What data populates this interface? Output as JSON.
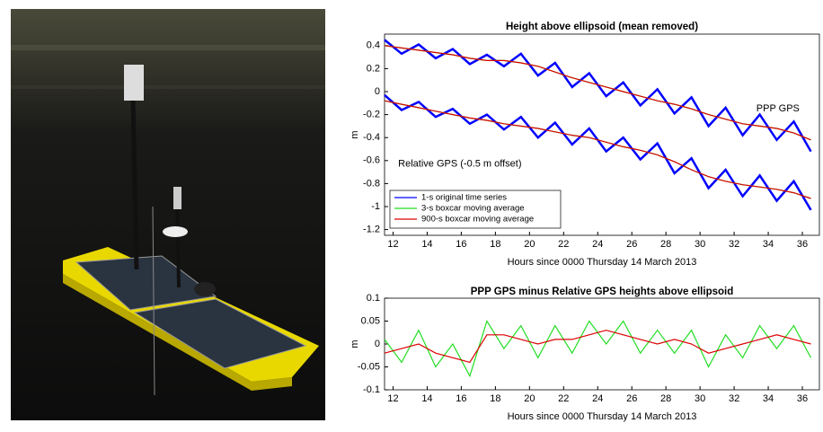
{
  "chart_data": [
    {
      "type": "line",
      "title": "Height above ellipsoid (mean removed)",
      "xlabel": "Hours since 0000 Thursday 14 March 2013",
      "ylabel": "m",
      "annotations": [
        "PPP GPS",
        "Relative GPS (-0.5 m offset)"
      ],
      "x": [
        11.5,
        12.5,
        13.5,
        14.5,
        15.5,
        16.5,
        17.5,
        18.5,
        19.5,
        20.5,
        21.5,
        22.5,
        23.5,
        24.5,
        25.5,
        26.5,
        27.5,
        28.5,
        29.5,
        30.5,
        31.5,
        32.5,
        33.5,
        34.5,
        35.5,
        36.5
      ],
      "xlim": [
        11.5,
        37
      ],
      "xticks": [
        12,
        14,
        16,
        18,
        20,
        22,
        24,
        26,
        28,
        30,
        32,
        34,
        36
      ],
      "ylim": [
        -1.25,
        0.5
      ],
      "yticks": [
        0.4,
        0.2,
        0,
        -0.2,
        -0.4,
        -0.6,
        -0.8,
        -1,
        -1.2
      ],
      "series": [
        {
          "name": "1-s original time series",
          "color": "#0000ff",
          "values": [
            0.45,
            0.33,
            0.41,
            0.29,
            0.37,
            0.24,
            0.32,
            0.22,
            0.33,
            0.14,
            0.25,
            0.04,
            0.16,
            -0.04,
            0.08,
            -0.12,
            0.02,
            -0.19,
            -0.05,
            -0.3,
            -0.14,
            -0.38,
            -0.2,
            -0.42,
            -0.26,
            -0.52
          ]
        },
        {
          "name": "3-s boxcar moving average",
          "color": "#22dd22",
          "values": [
            0.4,
            0.38,
            0.36,
            0.34,
            0.32,
            0.29,
            0.27,
            0.27,
            0.25,
            0.22,
            0.17,
            0.12,
            0.08,
            0.04,
            0.0,
            -0.04,
            -0.08,
            -0.11,
            -0.15,
            -0.2,
            -0.24,
            -0.28,
            -0.3,
            -0.32,
            -0.36,
            -0.42
          ]
        },
        {
          "name": "900-s boxcar moving average",
          "color": "#dd0000",
          "values": [
            0.4,
            0.38,
            0.36,
            0.34,
            0.32,
            0.29,
            0.27,
            0.27,
            0.25,
            0.22,
            0.17,
            0.12,
            0.08,
            0.04,
            0.0,
            -0.04,
            -0.08,
            -0.11,
            -0.15,
            -0.2,
            -0.24,
            -0.28,
            -0.3,
            -0.32,
            -0.36,
            -0.42
          ]
        },
        {
          "color": "#0000ff",
          "values": [
            -0.03,
            -0.16,
            -0.09,
            -0.22,
            -0.15,
            -0.28,
            -0.2,
            -0.33,
            -0.22,
            -0.4,
            -0.27,
            -0.46,
            -0.32,
            -0.52,
            -0.4,
            -0.59,
            -0.45,
            -0.71,
            -0.58,
            -0.84,
            -0.68,
            -0.91,
            -0.73,
            -0.95,
            -0.78,
            -1.03
          ]
        },
        {
          "color": "#22dd22",
          "values": [
            -0.08,
            -0.11,
            -0.14,
            -0.17,
            -0.2,
            -0.23,
            -0.25,
            -0.28,
            -0.3,
            -0.32,
            -0.35,
            -0.38,
            -0.4,
            -0.44,
            -0.48,
            -0.51,
            -0.55,
            -0.61,
            -0.68,
            -0.74,
            -0.78,
            -0.81,
            -0.83,
            -0.85,
            -0.88,
            -0.93
          ]
        },
        {
          "color": "#dd0000",
          "values": [
            -0.08,
            -0.11,
            -0.14,
            -0.17,
            -0.2,
            -0.23,
            -0.25,
            -0.28,
            -0.3,
            -0.32,
            -0.35,
            -0.38,
            -0.4,
            -0.44,
            -0.48,
            -0.51,
            -0.55,
            -0.61,
            -0.68,
            -0.74,
            -0.78,
            -0.81,
            -0.83,
            -0.85,
            -0.88,
            -0.93
          ]
        }
      ]
    },
    {
      "type": "line",
      "title": "PPP GPS minus Relative GPS heights above ellipsoid",
      "xlabel": "Hours since 0000 Thursday 14 March 2013",
      "ylabel": "m",
      "x": [
        11.5,
        12.5,
        13.5,
        14.5,
        15.5,
        16.5,
        17.5,
        18.5,
        19.5,
        20.5,
        21.5,
        22.5,
        23.5,
        24.5,
        25.5,
        26.5,
        27.5,
        28.5,
        29.5,
        30.5,
        31.5,
        32.5,
        33.5,
        34.5,
        35.5,
        36.5
      ],
      "xlim": [
        11.5,
        37
      ],
      "xticks": [
        12,
        14,
        16,
        18,
        20,
        22,
        24,
        26,
        28,
        30,
        32,
        34,
        36
      ],
      "ylim": [
        -0.1,
        0.1
      ],
      "yticks": [
        0.1,
        0.05,
        0,
        -0.05,
        -0.1
      ],
      "series": [
        {
          "color": "#22dd22",
          "values": [
            0.01,
            -0.04,
            0.03,
            -0.05,
            0,
            -0.07,
            0.05,
            -0.01,
            0.04,
            -0.03,
            0.04,
            -0.02,
            0.05,
            0,
            0.05,
            -0.02,
            0.03,
            -0.02,
            0.03,
            -0.05,
            0.02,
            -0.03,
            0.04,
            -0.01,
            0.04,
            -0.03
          ]
        },
        {
          "color": "#dd0000",
          "values": [
            -0.02,
            -0.01,
            0.0,
            -0.02,
            -0.03,
            -0.04,
            0.02,
            0.02,
            0.01,
            0.0,
            0.01,
            0.01,
            0.02,
            0.03,
            0.02,
            0.01,
            0.0,
            0.01,
            0.0,
            -0.02,
            -0.01,
            0.0,
            0.01,
            0.02,
            0.01,
            0.0
          ]
        }
      ]
    }
  ]
}
